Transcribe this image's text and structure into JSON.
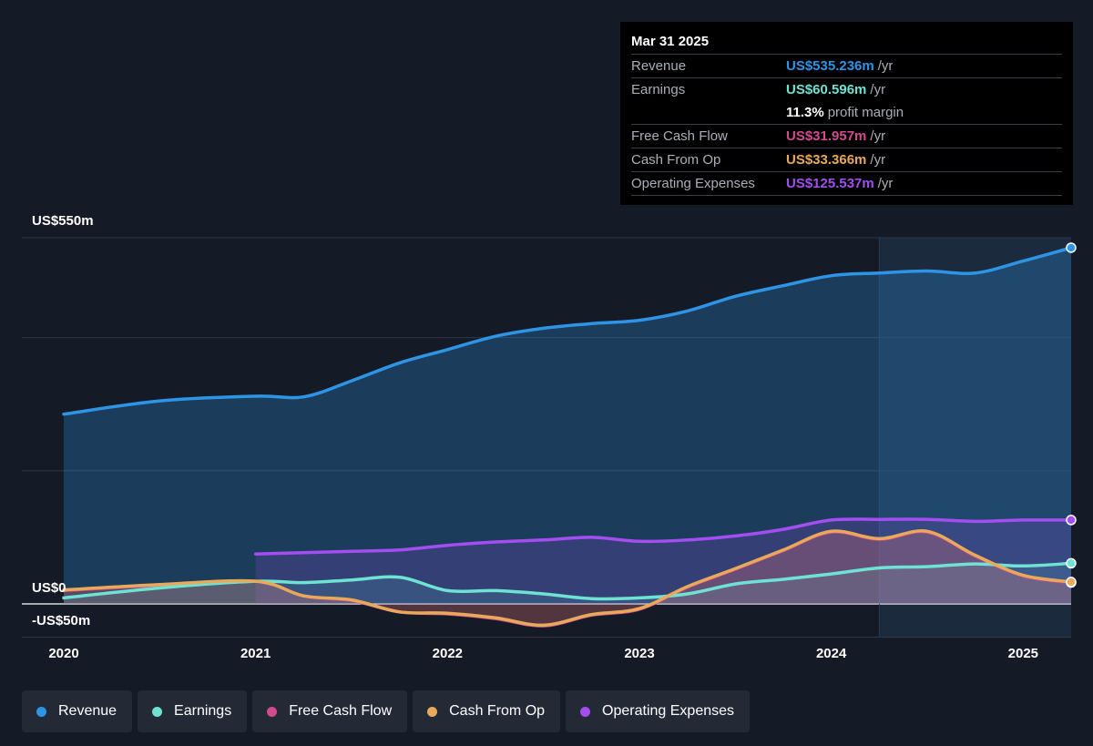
{
  "tooltip": {
    "date": "Mar 31 2025",
    "rows": [
      {
        "label": "Revenue",
        "value": "US$535.236m",
        "unit": "/yr",
        "color": "#2e94e6"
      },
      {
        "label": "Earnings",
        "value": "US$60.596m",
        "unit": "/yr",
        "color": "#6ee3d4"
      },
      {
        "margin_value": "11.3%",
        "margin_text": "profit margin"
      },
      {
        "label": "Free Cash Flow",
        "value": "US$31.957m",
        "unit": "/yr",
        "color": "#d14b8e"
      },
      {
        "label": "Cash From Op",
        "value": "US$33.366m",
        "unit": "/yr",
        "color": "#e8a95a"
      },
      {
        "label": "Operating Expenses",
        "value": "US$125.537m",
        "unit": "/yr",
        "color": "#a24ef0"
      }
    ]
  },
  "legend": [
    {
      "label": "Revenue",
      "color": "#2e94e6"
    },
    {
      "label": "Earnings",
      "color": "#6ee3d4"
    },
    {
      "label": "Free Cash Flow",
      "color": "#d14b8e"
    },
    {
      "label": "Cash From Op",
      "color": "#e8a95a"
    },
    {
      "label": "Operating Expenses",
      "color": "#a24ef0"
    }
  ],
  "chart_data": {
    "type": "area",
    "y_tick_labels": [
      "US$550m",
      "US$0",
      "-US$50m"
    ],
    "x_tick_labels": [
      "2020",
      "2021",
      "2022",
      "2023",
      "2024",
      "2025"
    ],
    "ylim": [
      -50,
      550
    ],
    "xlim": [
      2020,
      2025.25
    ],
    "highlight_start": 2024.25,
    "series": [
      {
        "name": "Revenue",
        "color": "#2e94e6",
        "x": [
          2020,
          2020.5,
          2021,
          2021.25,
          2021.5,
          2021.75,
          2022,
          2022.25,
          2022.5,
          2022.75,
          2023,
          2023.25,
          2023.5,
          2023.75,
          2024,
          2024.25,
          2024.5,
          2024.75,
          2025,
          2025.25
        ],
        "values": [
          285,
          305,
          312,
          311,
          335,
          362,
          382,
          402,
          414,
          421,
          426,
          440,
          462,
          478,
          493,
          497,
          500,
          497,
          515,
          535
        ]
      },
      {
        "name": "Earnings",
        "color": "#6ee3d4",
        "x": [
          2020,
          2020.5,
          2021,
          2021.25,
          2021.5,
          2021.75,
          2022,
          2022.25,
          2022.5,
          2022.75,
          2023,
          2023.25,
          2023.5,
          2023.75,
          2024,
          2024.25,
          2024.5,
          2024.75,
          2025,
          2025.25
        ],
        "values": [
          9,
          24,
          34,
          32,
          36,
          40,
          20,
          20,
          15,
          8,
          9,
          15,
          30,
          37,
          45,
          54,
          56,
          60,
          57,
          61
        ]
      },
      {
        "name": "Free Cash Flow",
        "color": "#d14b8e",
        "x": [
          2020,
          2020.5,
          2021,
          2021.25,
          2021.5,
          2021.75,
          2022,
          2022.25,
          2022.5,
          2022.75,
          2023,
          2023.25,
          2023.5,
          2023.75,
          2024,
          2024.25,
          2024.5,
          2024.75,
          2025,
          2025.25
        ],
        "values": [
          20,
          28,
          34,
          12,
          5,
          -12,
          -15,
          -22,
          -33,
          -17,
          -8,
          25,
          52,
          80,
          108,
          97,
          108,
          72,
          42,
          32
        ]
      },
      {
        "name": "Cash From Op",
        "color": "#e8a95a",
        "x": [
          2020,
          2020.5,
          2021,
          2021.25,
          2021.5,
          2021.75,
          2022,
          2022.25,
          2022.5,
          2022.75,
          2023,
          2023.25,
          2023.5,
          2023.75,
          2024,
          2024.25,
          2024.5,
          2024.75,
          2025,
          2025.25
        ],
        "values": [
          21,
          29,
          34,
          12,
          6,
          -12,
          -14,
          -21,
          -32,
          -16,
          -7,
          26,
          53,
          81,
          109,
          98,
          109,
          73,
          43,
          33
        ]
      },
      {
        "name": "Operating Expenses",
        "color": "#a24ef0",
        "x": [
          2021,
          2021.25,
          2021.5,
          2021.75,
          2022,
          2022.25,
          2022.5,
          2022.75,
          2023,
          2023.25,
          2023.5,
          2023.75,
          2024,
          2024.25,
          2024.5,
          2024.75,
          2025,
          2025.25
        ],
        "values": [
          75,
          77,
          79,
          81,
          88,
          93,
          96,
          100,
          94,
          96,
          102,
          112,
          126,
          127,
          127,
          124,
          126,
          126
        ]
      }
    ]
  }
}
